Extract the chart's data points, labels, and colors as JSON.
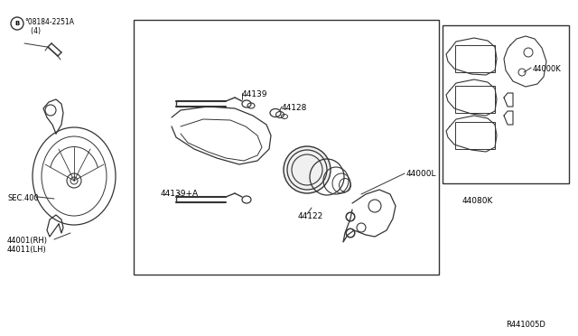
{
  "bg_color": "#ffffff",
  "line_color": "#333333",
  "text_color": "#000000",
  "fig_width": 6.4,
  "fig_height": 3.72,
  "dpi": 100,
  "labels": {
    "bolt_label": "°08184-2251A\n   (4)",
    "sec400": "SEC.400",
    "part_44001": "44001(RH)\n44011(LH)",
    "part_44139": "44139",
    "part_44128": "44128",
    "part_44139a": "44139+A",
    "part_44122": "44122",
    "part_44000L": "44000L",
    "part_44000K": "44000K",
    "part_44080K": "44080K",
    "diagram_ref": "R441005D"
  }
}
